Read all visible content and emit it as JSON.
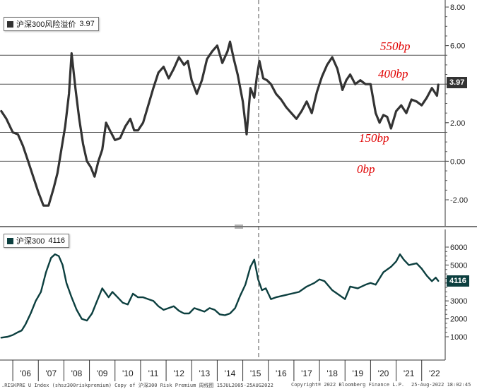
{
  "chart_data": [
    {
      "type": "line",
      "title": "沪深300风险溢价",
      "last_value": "3.97",
      "ylim": [
        -3.0,
        8.0
      ],
      "yticks": [
        "8.00",
        "6.00",
        "4.00",
        "2.00",
        "0.00",
        "-2.00"
      ],
      "grid": "horizontal lines at annotated levels",
      "series": [
        {
          "name": "沪深300风险溢价",
          "color": "#333333",
          "x": [
            2005.55,
            2005.75,
            2006.0,
            2006.2,
            2006.4,
            2006.6,
            2006.8,
            2007.0,
            2007.2,
            2007.4,
            2007.6,
            2007.75,
            2007.9,
            2008.05,
            2008.2,
            2008.3,
            2008.45,
            2008.6,
            2008.75,
            2008.9,
            2009.05,
            2009.2,
            2009.35,
            2009.5,
            2009.65,
            2009.8,
            2010.0,
            2010.2,
            2010.4,
            2010.6,
            2010.75,
            2010.9,
            2011.1,
            2011.3,
            2011.5,
            2011.7,
            2011.9,
            2012.1,
            2012.3,
            2012.5,
            2012.7,
            2012.85,
            2013.0,
            2013.2,
            2013.4,
            2013.6,
            2013.8,
            2014.0,
            2014.2,
            2014.4,
            2014.5,
            2014.65,
            2014.8,
            2015.0,
            2015.15,
            2015.3,
            2015.45,
            2015.55,
            2015.65,
            2015.8,
            2015.95,
            2016.1,
            2016.3,
            2016.5,
            2016.7,
            2016.9,
            2017.1,
            2017.3,
            2017.5,
            2017.7,
            2017.9,
            2018.1,
            2018.3,
            2018.5,
            2018.7,
            2018.9,
            2019.05,
            2019.2,
            2019.4,
            2019.6,
            2019.8,
            2020.0,
            2020.2,
            2020.35,
            2020.5,
            2020.65,
            2020.8,
            2021.0,
            2021.2,
            2021.4,
            2021.6,
            2021.8,
            2022.0,
            2022.2,
            2022.4,
            2022.6,
            2022.65
          ],
          "values": [
            2.6,
            2.2,
            1.5,
            1.4,
            0.8,
            0.0,
            -0.8,
            -1.6,
            -2.3,
            -2.3,
            -1.4,
            -0.6,
            0.6,
            1.8,
            3.5,
            5.6,
            3.8,
            2.2,
            0.9,
            0.0,
            -0.3,
            -0.8,
            0.0,
            0.6,
            2.0,
            1.6,
            1.1,
            1.2,
            1.8,
            2.2,
            1.6,
            1.6,
            2.0,
            2.9,
            3.8,
            4.6,
            4.9,
            4.3,
            4.8,
            5.4,
            5.0,
            5.2,
            4.2,
            3.5,
            4.2,
            5.3,
            5.7,
            6.0,
            5.1,
            5.7,
            6.2,
            5.3,
            4.5,
            3.1,
            1.4,
            3.8,
            3.3,
            4.4,
            5.2,
            4.3,
            4.2,
            4.0,
            3.5,
            3.2,
            2.8,
            2.5,
            2.2,
            2.6,
            3.1,
            2.5,
            3.6,
            4.4,
            5.0,
            5.4,
            4.8,
            3.7,
            4.2,
            4.5,
            4.0,
            4.2,
            4.0,
            4.0,
            2.5,
            2.0,
            2.4,
            2.3,
            1.7,
            2.6,
            2.9,
            2.5,
            3.2,
            3.1,
            2.9,
            3.3,
            3.8,
            3.4,
            3.97
          ]
        }
      ],
      "annotations": [
        {
          "label": "550bp",
          "y": 5.5
        },
        {
          "label": "400bp",
          "y": 4.0
        },
        {
          "label": "150bp",
          "y": 1.5
        },
        {
          "label": "0bp",
          "y": 0.0
        }
      ]
    },
    {
      "type": "line",
      "title": "沪深300",
      "last_value": "4116",
      "ylim": [
        0,
        6800
      ],
      "yticks": [
        "6000",
        "5000",
        "4000",
        "3000",
        "2000",
        "1000"
      ],
      "series": [
        {
          "name": "沪深300",
          "color": "#0c3f3f",
          "x": [
            2005.55,
            2005.8,
            2006.0,
            2006.2,
            2006.35,
            2006.5,
            2006.7,
            2006.9,
            2007.1,
            2007.3,
            2007.5,
            2007.65,
            2007.8,
            2007.95,
            2008.1,
            2008.3,
            2008.5,
            2008.7,
            2008.9,
            2009.1,
            2009.3,
            2009.5,
            2009.6,
            2009.75,
            2009.9,
            2010.1,
            2010.3,
            2010.5,
            2010.7,
            2010.9,
            2011.1,
            2011.3,
            2011.5,
            2011.7,
            2011.9,
            2012.1,
            2012.3,
            2012.5,
            2012.7,
            2012.9,
            2013.1,
            2013.3,
            2013.5,
            2013.7,
            2013.9,
            2014.1,
            2014.3,
            2014.5,
            2014.7,
            2014.9,
            2015.1,
            2015.3,
            2015.45,
            2015.6,
            2015.75,
            2015.9,
            2016.1,
            2016.3,
            2016.6,
            2016.9,
            2017.2,
            2017.5,
            2017.8,
            2018.0,
            2018.2,
            2018.5,
            2018.8,
            2019.0,
            2019.2,
            2019.5,
            2019.8,
            2020.0,
            2020.2,
            2020.5,
            2020.8,
            2021.0,
            2021.15,
            2021.3,
            2021.5,
            2021.8,
            2022.0,
            2022.2,
            2022.4,
            2022.55,
            2022.65
          ],
          "values": [
            950,
            1000,
            1100,
            1250,
            1350,
            1700,
            2300,
            3000,
            3500,
            4600,
            5400,
            5600,
            5500,
            5000,
            4000,
            3200,
            2500,
            2000,
            1900,
            2300,
            3000,
            3700,
            3500,
            3200,
            3500,
            3200,
            2900,
            2800,
            3400,
            3200,
            3200,
            3100,
            3000,
            2700,
            2500,
            2600,
            2700,
            2450,
            2300,
            2300,
            2600,
            2500,
            2400,
            2600,
            2500,
            2250,
            2200,
            2300,
            2600,
            3300,
            3900,
            4900,
            5300,
            4200,
            3600,
            3700,
            3100,
            3200,
            3300,
            3400,
            3500,
            3800,
            4000,
            4200,
            4100,
            3600,
            3300,
            3100,
            3800,
            3700,
            3900,
            4000,
            3900,
            4600,
            4900,
            5200,
            5600,
            5300,
            5000,
            5100,
            4800,
            4400,
            4100,
            4300,
            4116
          ]
        }
      ]
    }
  ],
  "x_axis": {
    "range": [
      2005.5,
      2022.92
    ],
    "tick_labels": [
      "'06",
      "'07",
      "'08",
      "'09",
      "'10",
      "'11",
      "'12",
      "'13",
      "'14",
      "'15",
      "'16",
      "'17",
      "'18",
      "'19",
      "'20",
      "'21",
      "'22"
    ]
  },
  "footer": {
    "left": ".RISKPRE U Index (shsz300riskpremium) Copy of 沪深300 Risk Premium  周线图 15JUL2005-25AUG2022",
    "center": "Copyright® 2022 Bloomberg Finance L.P.",
    "right": "25-Aug-2022 18:02:45"
  }
}
